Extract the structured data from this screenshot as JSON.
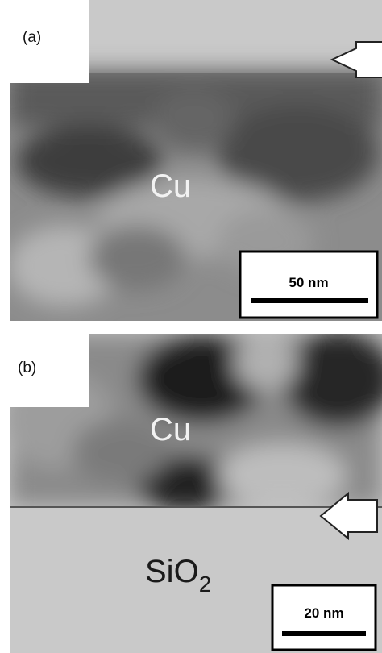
{
  "panels": [
    {
      "label": "(a)",
      "material_labels": [
        {
          "text": "Cu"
        }
      ],
      "scale_bar": "50 nm"
    },
    {
      "label": "(b)",
      "material_labels": [
        {
          "text": "Cu"
        },
        {
          "text": "SiO",
          "subscript": "2"
        }
      ],
      "scale_bar": "20 nm"
    }
  ]
}
